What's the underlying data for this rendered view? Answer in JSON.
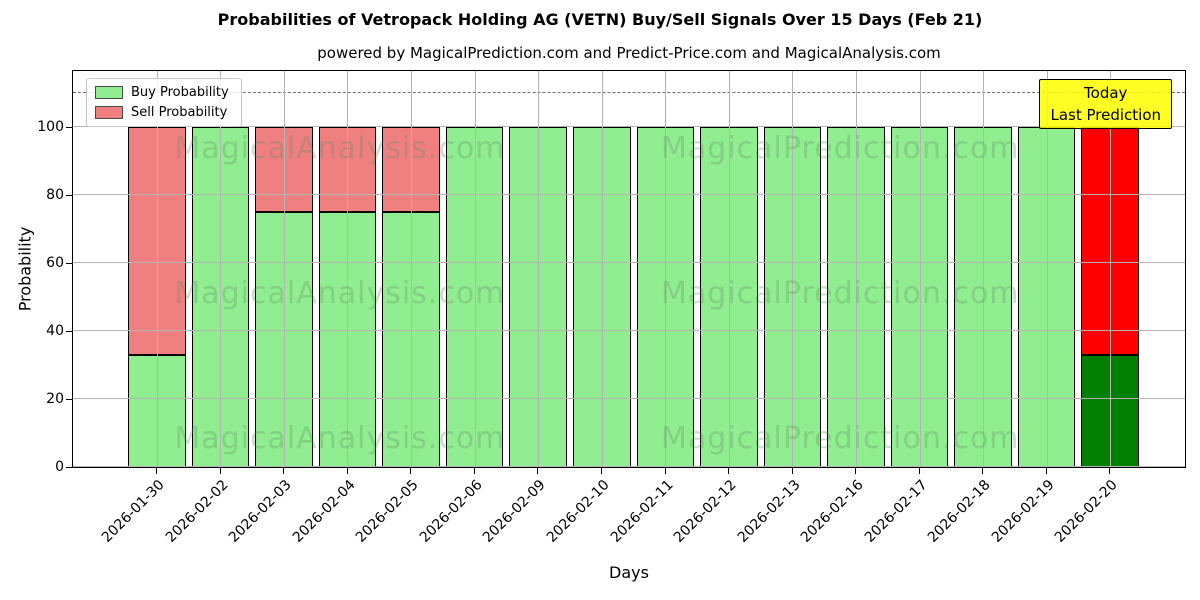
{
  "title": "Probabilities of Vetropack Holding AG (VETN) Buy/Sell Signals Over 15 Days (Feb 21)",
  "subtitle": "powered by MagicalPrediction.com and Predict-Price.com and MagicalAnalysis.com",
  "legend": {
    "items": [
      {
        "label": "Buy Probability",
        "color": "#90EE90"
      },
      {
        "label": "Sell Probability",
        "color": "#F08080"
      }
    ]
  },
  "annotation": {
    "line1": "Today",
    "line2": "Last Prediction",
    "bg_color": "#FFFF00"
  },
  "watermarks": {
    "left_text": "MagicalAnalysis.com",
    "right_text": "MagicalPrediction.com",
    "color": "rgba(100,140,100,0.30)"
  },
  "colors": {
    "buy": "#90EE90",
    "sell": "#F08080",
    "buy_today": "#008000",
    "sell_today": "#FF0000",
    "grid": "#b4b4b4",
    "dashed_line": "#6e6e6e",
    "bar_edge": "#000000",
    "annotation_bg": "#FFFF00"
  },
  "chart_data": {
    "type": "bar",
    "stacked": true,
    "title": "Probabilities of Vetropack Holding AG (VETN) Buy/Sell Signals Over 15 Days (Feb 21)",
    "xlabel": "Days",
    "ylabel": "Probability",
    "categories": [
      "2026-01-30",
      "2026-02-02",
      "2026-02-03",
      "2026-02-04",
      "2026-02-05",
      "2026-02-06",
      "2026-02-09",
      "2026-02-10",
      "2026-02-11",
      "2026-02-12",
      "2026-02-13",
      "2026-02-16",
      "2026-02-17",
      "2026-02-18",
      "2026-02-19",
      "2026-02-20"
    ],
    "series": [
      {
        "name": "Buy Probability",
        "values": [
          33,
          100,
          75,
          75,
          75,
          100,
          100,
          100,
          100,
          100,
          100,
          100,
          100,
          100,
          100,
          33
        ],
        "colors": [
          "#90EE90",
          "#90EE90",
          "#90EE90",
          "#90EE90",
          "#90EE90",
          "#90EE90",
          "#90EE90",
          "#90EE90",
          "#90EE90",
          "#90EE90",
          "#90EE90",
          "#90EE90",
          "#90EE90",
          "#90EE90",
          "#90EE90",
          "#008000"
        ]
      },
      {
        "name": "Sell Probability",
        "values": [
          67,
          0,
          25,
          25,
          25,
          0,
          0,
          0,
          0,
          0,
          0,
          0,
          0,
          0,
          0,
          67
        ],
        "colors": [
          "#F08080",
          "#F08080",
          "#F08080",
          "#F08080",
          "#F08080",
          "#F08080",
          "#F08080",
          "#F08080",
          "#F08080",
          "#F08080",
          "#F08080",
          "#F08080",
          "#F08080",
          "#F08080",
          "#F08080",
          "#FF0000"
        ]
      }
    ],
    "yticks": [
      0,
      20,
      40,
      60,
      80,
      100
    ],
    "ylim": [
      0,
      117
    ],
    "dashed_line_y": 110,
    "grid": true,
    "legend_position": "upper left",
    "x_tick_rotation": 45
  }
}
